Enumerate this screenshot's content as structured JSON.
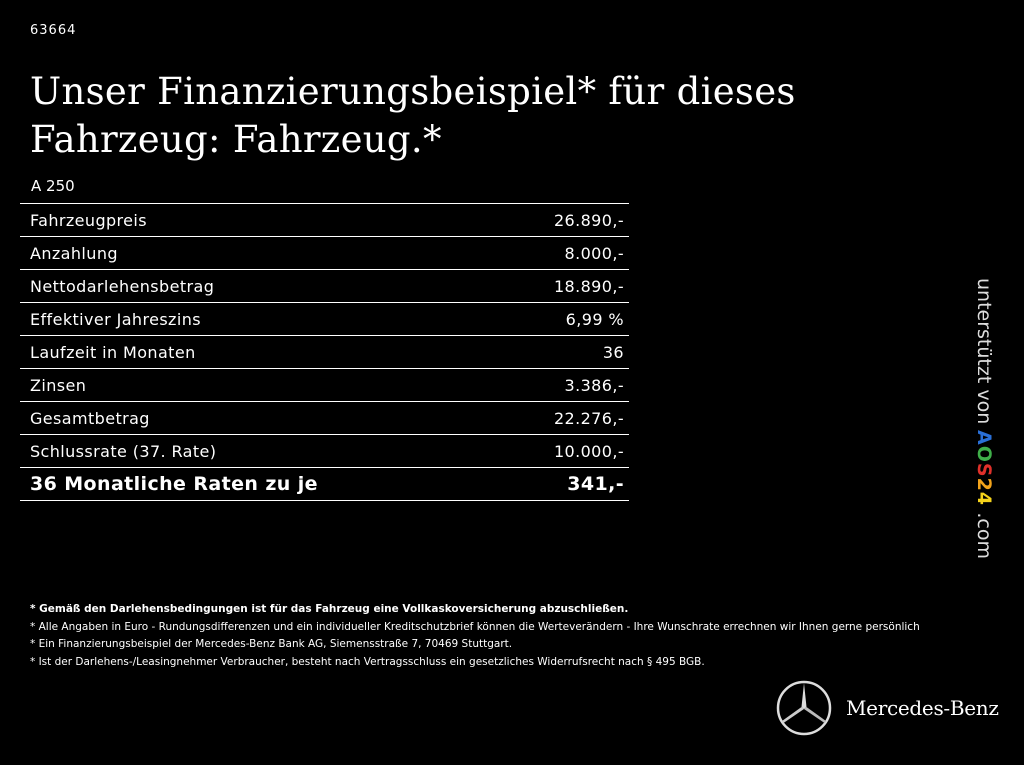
{
  "code": "63664",
  "title": "Unser Finanzierungsbeispiel* für dieses Fahrzeug: Fahrzeug.*",
  "model": "A 250",
  "rows": [
    {
      "label": "Fahrzeugpreis",
      "value": "26.890,-"
    },
    {
      "label": "Anzahlung",
      "value": "8.000,-"
    },
    {
      "label": "Nettodarlehensbetrag",
      "value": "18.890,-"
    },
    {
      "label": "Effektiver Jahreszins",
      "value": "6,99 %"
    },
    {
      "label": "Laufzeit in Monaten",
      "value": "36"
    },
    {
      "label": "Zinsen",
      "value": "3.386,-"
    },
    {
      "label": "Gesamtbetrag",
      "value": "22.276,-"
    },
    {
      "label": "Schlussrate (37. Rate)",
      "value": "10.000,-"
    }
  ],
  "total": {
    "label": "36 Monatliche Raten zu je",
    "value": "341,-"
  },
  "notes": [
    "* Gemäß den Darlehensbedingungen ist für das Fahrzeug eine Vollkaskoversicherung abzuschließen.",
    "* Alle Angaben in Euro - Rundungsdifferenzen und ein individueller Kreditschutzbrief können die Werteverändern - Ihre Wunschrate errechnen wir Ihnen gerne persönlich",
    "* Ein Finanzierungsbeispiel der Mercedes-Benz Bank AG, Siemensstraße 7, 70469 Stuttgart.",
    "* Ist der Darlehens-/Leasingnehmer Verbraucher, besteht nach Vertragsschluss ein gesetzliches Widerrufsrecht nach § 495 BGB."
  ],
  "sponsor": {
    "prefix": "unterstützt von",
    "logo": [
      "A",
      "O",
      "S",
      "2",
      "4"
    ],
    "suffix": ".com",
    "colors": [
      "#2a6fd6",
      "#3fae49",
      "#e0302a",
      "#f2a31b",
      "#f5d31b"
    ]
  },
  "brand": "Mercedes-Benz"
}
